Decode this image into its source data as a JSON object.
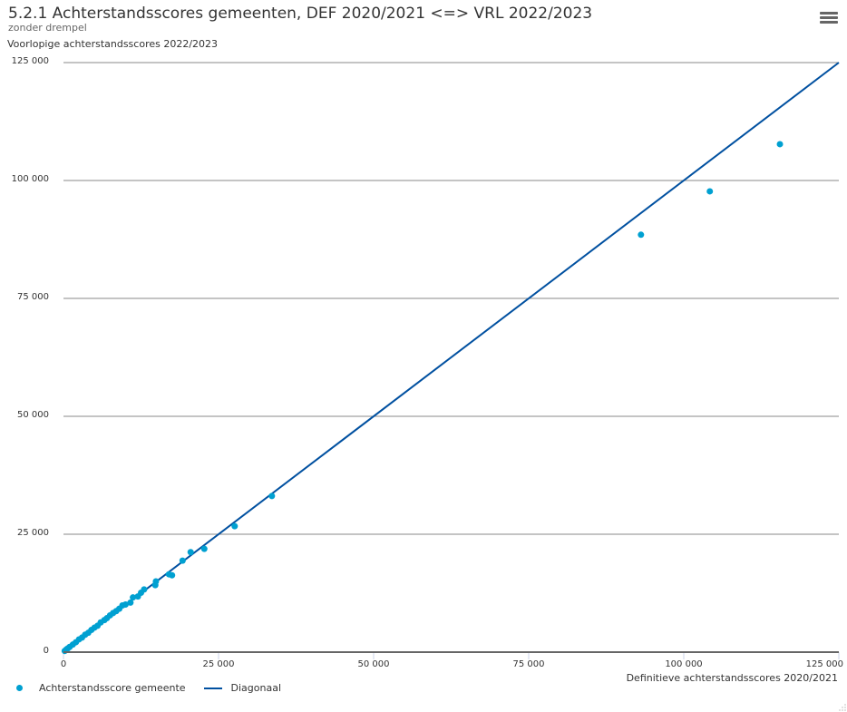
{
  "header": {
    "title": "5.2.1 Achterstandsscores gemeenten, DEF 2020/2021 <=> VRL 2022/2023",
    "subtitle": "zonder drempel",
    "menu_icon": "hamburger-menu-icon"
  },
  "colors": {
    "points": "#00a0d1",
    "diagonal": "#0050a0",
    "grid": "#888888",
    "axis": "#666666"
  },
  "legend": {
    "items": [
      {
        "label": "Achterstandsscore gemeente",
        "symbol": "dot"
      },
      {
        "label": "Diagonaal",
        "symbol": "line"
      }
    ]
  },
  "chart_data": {
    "type": "scatter",
    "title": "5.2.1 Achterstandsscores gemeenten, DEF 2020/2021 <=> VRL 2022/2023",
    "subtitle": "zonder drempel",
    "xlabel": "Definitieve achterstandsscores 2020/2021",
    "ylabel": "Voorlopige achterstandsscores 2022/2023",
    "xlim": [
      0,
      125000
    ],
    "ylim": [
      0,
      125000
    ],
    "xticks": [
      "0",
      "25 000",
      "50 000",
      "75 000",
      "100 000",
      "125 000"
    ],
    "yticks": [
      "0",
      "25 000",
      "50 000",
      "75 000",
      "100 000",
      "125 000"
    ],
    "grid": "horizontal",
    "legend_position": "bottom-left",
    "series": [
      {
        "name": "Achterstandsscore gemeente",
        "type": "scatter",
        "points": [
          [
            115500,
            107700
          ],
          [
            104200,
            97700
          ],
          [
            93100,
            88500
          ],
          [
            33600,
            33100
          ],
          [
            27600,
            26700
          ],
          [
            22700,
            21900
          ],
          [
            20500,
            21200
          ],
          [
            19200,
            19400
          ],
          [
            17000,
            16500
          ],
          [
            17500,
            16300
          ],
          [
            14900,
            15000
          ],
          [
            14800,
            14200
          ],
          [
            13000,
            13300
          ],
          [
            12500,
            12600
          ],
          [
            12000,
            11800
          ],
          [
            11200,
            11600
          ],
          [
            10800,
            10500
          ],
          [
            10000,
            10100
          ],
          [
            9500,
            9900
          ],
          [
            9000,
            9200
          ],
          [
            8500,
            8700
          ],
          [
            8000,
            8300
          ],
          [
            7500,
            7800
          ],
          [
            7000,
            7200
          ],
          [
            6600,
            6800
          ],
          [
            6000,
            6300
          ],
          [
            5500,
            5600
          ],
          [
            5000,
            5200
          ],
          [
            4500,
            4700
          ],
          [
            4000,
            4100
          ],
          [
            3500,
            3700
          ],
          [
            3000,
            3100
          ],
          [
            2500,
            2700
          ],
          [
            2000,
            2100
          ],
          [
            1500,
            1600
          ],
          [
            1000,
            1100
          ],
          [
            700,
            800
          ],
          [
            500,
            600
          ],
          [
            300,
            350
          ],
          [
            200,
            250
          ]
        ]
      },
      {
        "name": "Diagonaal",
        "type": "line",
        "points": [
          [
            0,
            0
          ],
          [
            125000,
            125000
          ]
        ]
      }
    ]
  }
}
